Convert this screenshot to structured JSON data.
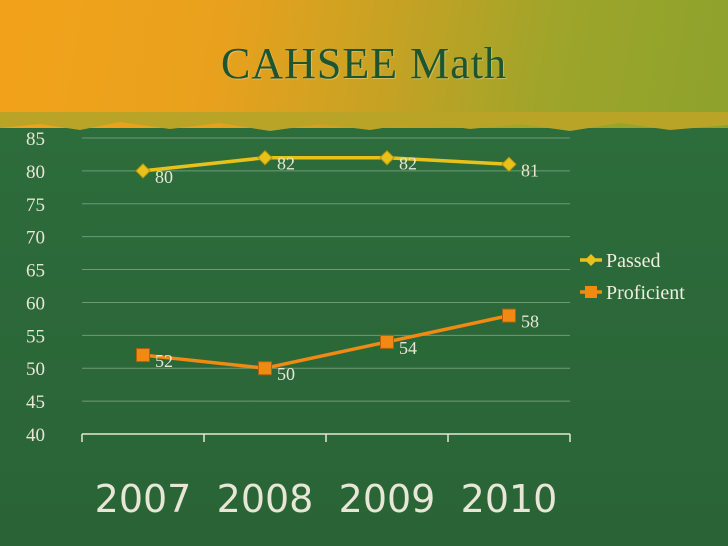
{
  "slide": {
    "title": "CAHSEE Math"
  },
  "colors": {
    "background": "#2c6a3a",
    "header": "#e9a11d",
    "axis": "#e8e6d6"
  },
  "chart_data": {
    "type": "line",
    "title": "CAHSEE Math",
    "categories": [
      "2007",
      "2008",
      "2009",
      "2010"
    ],
    "series": [
      {
        "name": "Passed",
        "values": [
          80,
          82,
          82,
          81
        ],
        "color": "#e8c21a",
        "marker": "diamond"
      },
      {
        "name": "Proficient",
        "values": [
          52,
          50,
          54,
          58
        ],
        "color": "#f08a12",
        "marker": "square"
      }
    ],
    "ylim": [
      40,
      85
    ],
    "yticks": [
      40,
      45,
      50,
      55,
      60,
      65,
      70,
      75,
      80,
      85
    ],
    "xlabel": "",
    "ylabel": "",
    "grid": true,
    "legend": "right",
    "data_labels": true
  }
}
